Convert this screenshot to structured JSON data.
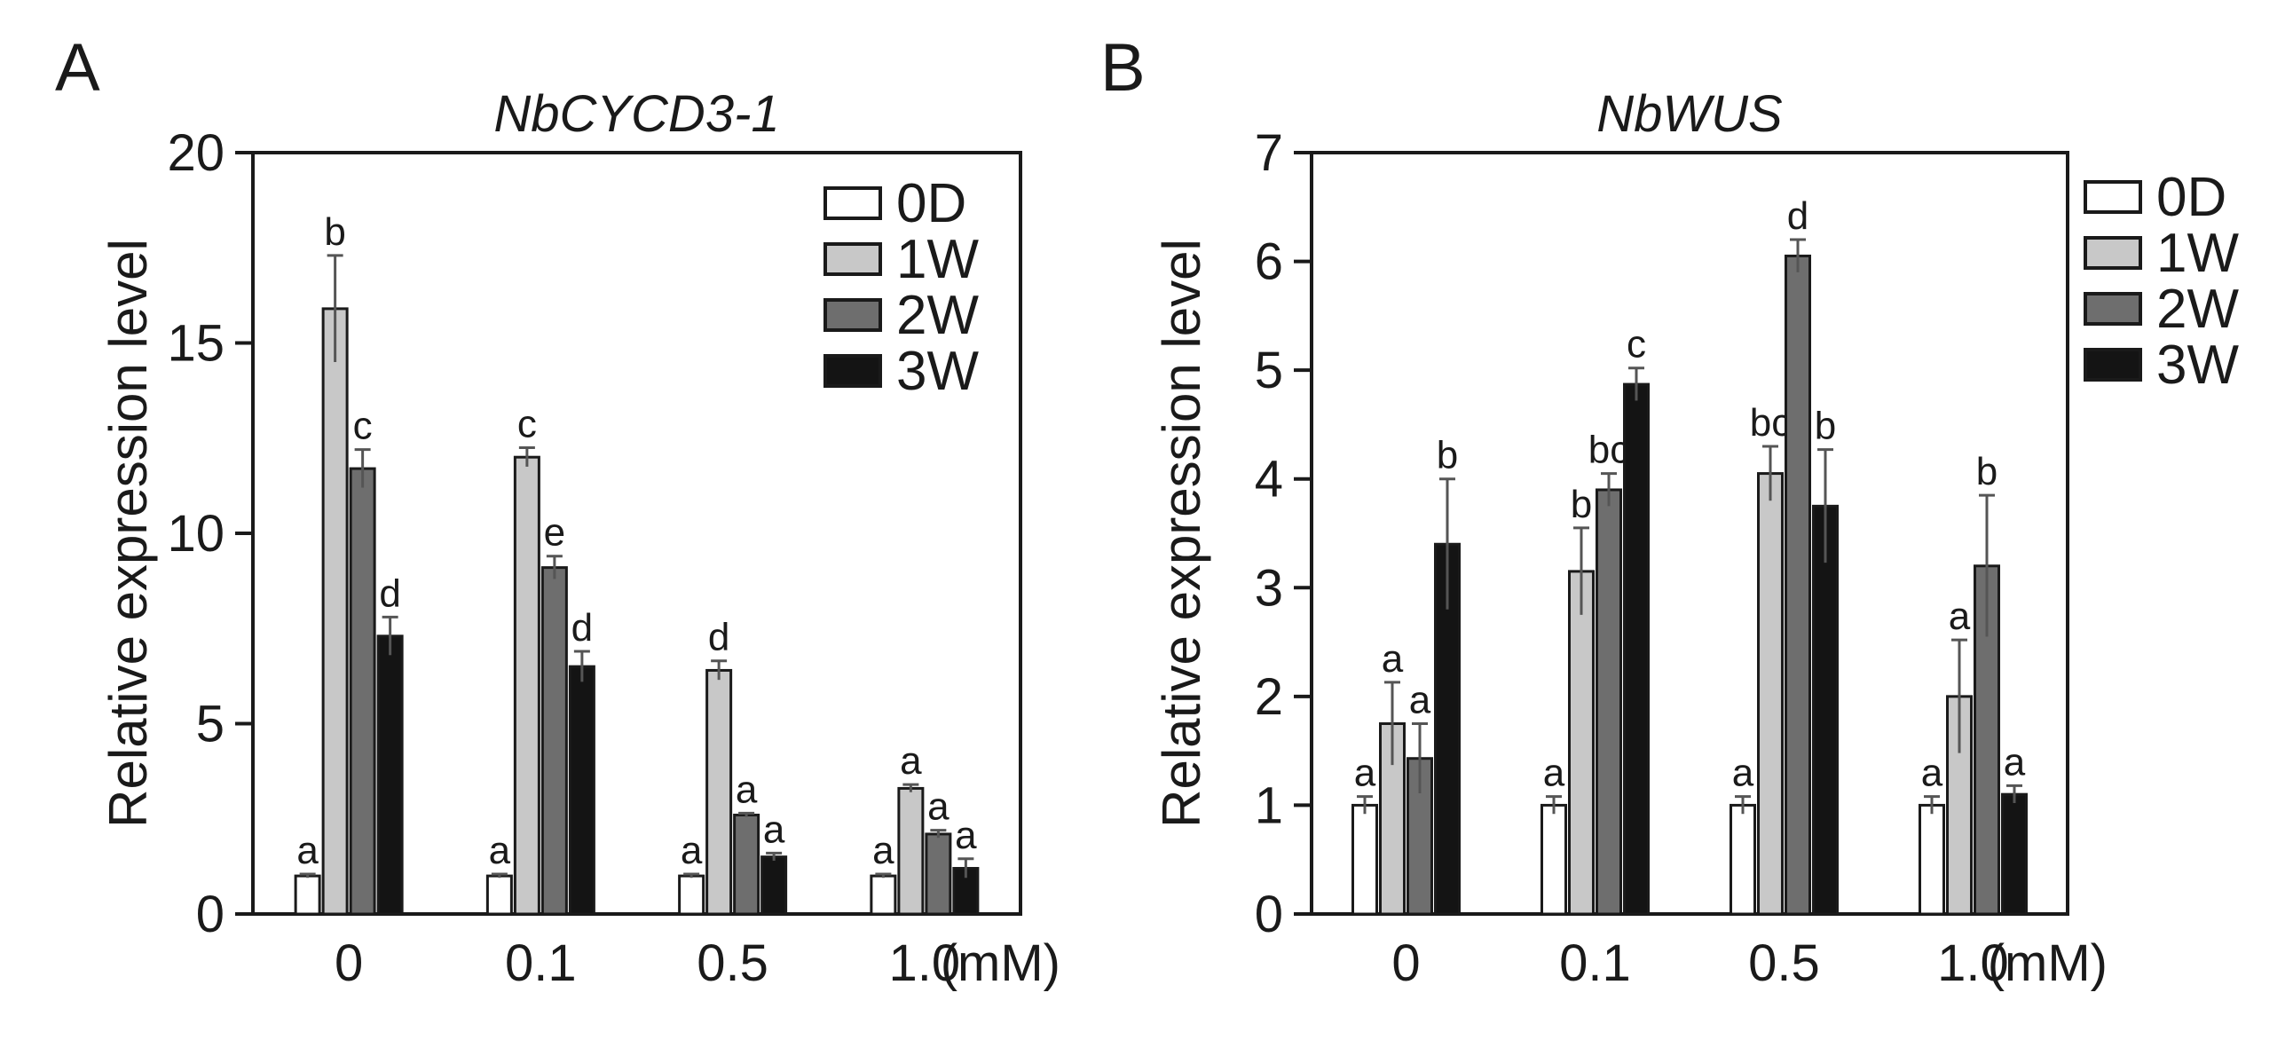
{
  "chart_data": [
    {
      "panel_letter": "A",
      "type": "bar",
      "title": "NbCYCD3-1",
      "xlabel": "",
      "ylabel": "Relative expression level",
      "unit_label": "(mM)",
      "categories": [
        "0",
        "0.1",
        "0.5",
        "1.0"
      ],
      "ylim": [
        0,
        20
      ],
      "yticks": [
        "0",
        "5",
        "10",
        "15",
        "20"
      ],
      "legend_position": "top-right",
      "grid": false,
      "series": [
        {
          "name": "0D",
          "color": "#ffffff",
          "values": [
            1.0,
            1.0,
            1.0,
            1.0
          ],
          "errors": [
            0.05,
            0.05,
            0.05,
            0.05
          ],
          "labels": [
            "a",
            "a",
            "a",
            "a"
          ]
        },
        {
          "name": "1W",
          "color": "#c8c8c8",
          "values": [
            15.9,
            12.0,
            6.4,
            3.3
          ],
          "errors": [
            1.4,
            0.25,
            0.25,
            0.1
          ],
          "labels": [
            "b",
            "c",
            "d",
            "a"
          ]
        },
        {
          "name": "2W",
          "color": "#6e6e6e",
          "values": [
            11.7,
            9.1,
            2.6,
            2.1
          ],
          "errors": [
            0.5,
            0.3,
            0.05,
            0.1
          ],
          "labels": [
            "c",
            "e",
            "a",
            "a"
          ]
        },
        {
          "name": "3W",
          "color": "#141414",
          "values": [
            7.3,
            6.5,
            1.5,
            1.2
          ],
          "errors": [
            0.5,
            0.4,
            0.1,
            0.25
          ],
          "labels": [
            "d",
            "d",
            "a",
            "a"
          ]
        }
      ]
    },
    {
      "panel_letter": "B",
      "type": "bar",
      "title": "NbWUS",
      "xlabel": "",
      "ylabel": "Relative expression level",
      "unit_label": "(mM)",
      "categories": [
        "0",
        "0.1",
        "0.5",
        "1.0"
      ],
      "ylim": [
        0,
        7
      ],
      "yticks": [
        "0",
        "1",
        "2",
        "3",
        "4",
        "5",
        "6",
        "7"
      ],
      "legend_position": "top-right (outside)",
      "grid": false,
      "series": [
        {
          "name": "0D",
          "color": "#ffffff",
          "values": [
            1.0,
            1.0,
            1.0,
            1.0
          ],
          "errors": [
            0.08,
            0.08,
            0.08,
            0.08
          ],
          "labels": [
            "a",
            "a",
            "a",
            "a"
          ]
        },
        {
          "name": "1W",
          "color": "#c8c8c8",
          "values": [
            1.75,
            3.15,
            4.05,
            2.0
          ],
          "errors": [
            0.38,
            0.4,
            0.25,
            0.52
          ],
          "labels": [
            "a",
            "b",
            "bc",
            "a"
          ]
        },
        {
          "name": "2W",
          "color": "#6e6e6e",
          "values": [
            1.43,
            3.9,
            6.05,
            3.2
          ],
          "errors": [
            0.32,
            0.15,
            0.15,
            0.65
          ],
          "labels": [
            "a",
            "bc",
            "d",
            "b"
          ]
        },
        {
          "name": "3W",
          "color": "#141414",
          "values": [
            3.4,
            4.87,
            3.75,
            1.1
          ],
          "errors": [
            0.6,
            0.15,
            0.52,
            0.08
          ],
          "labels": [
            "b",
            "c",
            "b",
            "a"
          ]
        }
      ]
    }
  ]
}
